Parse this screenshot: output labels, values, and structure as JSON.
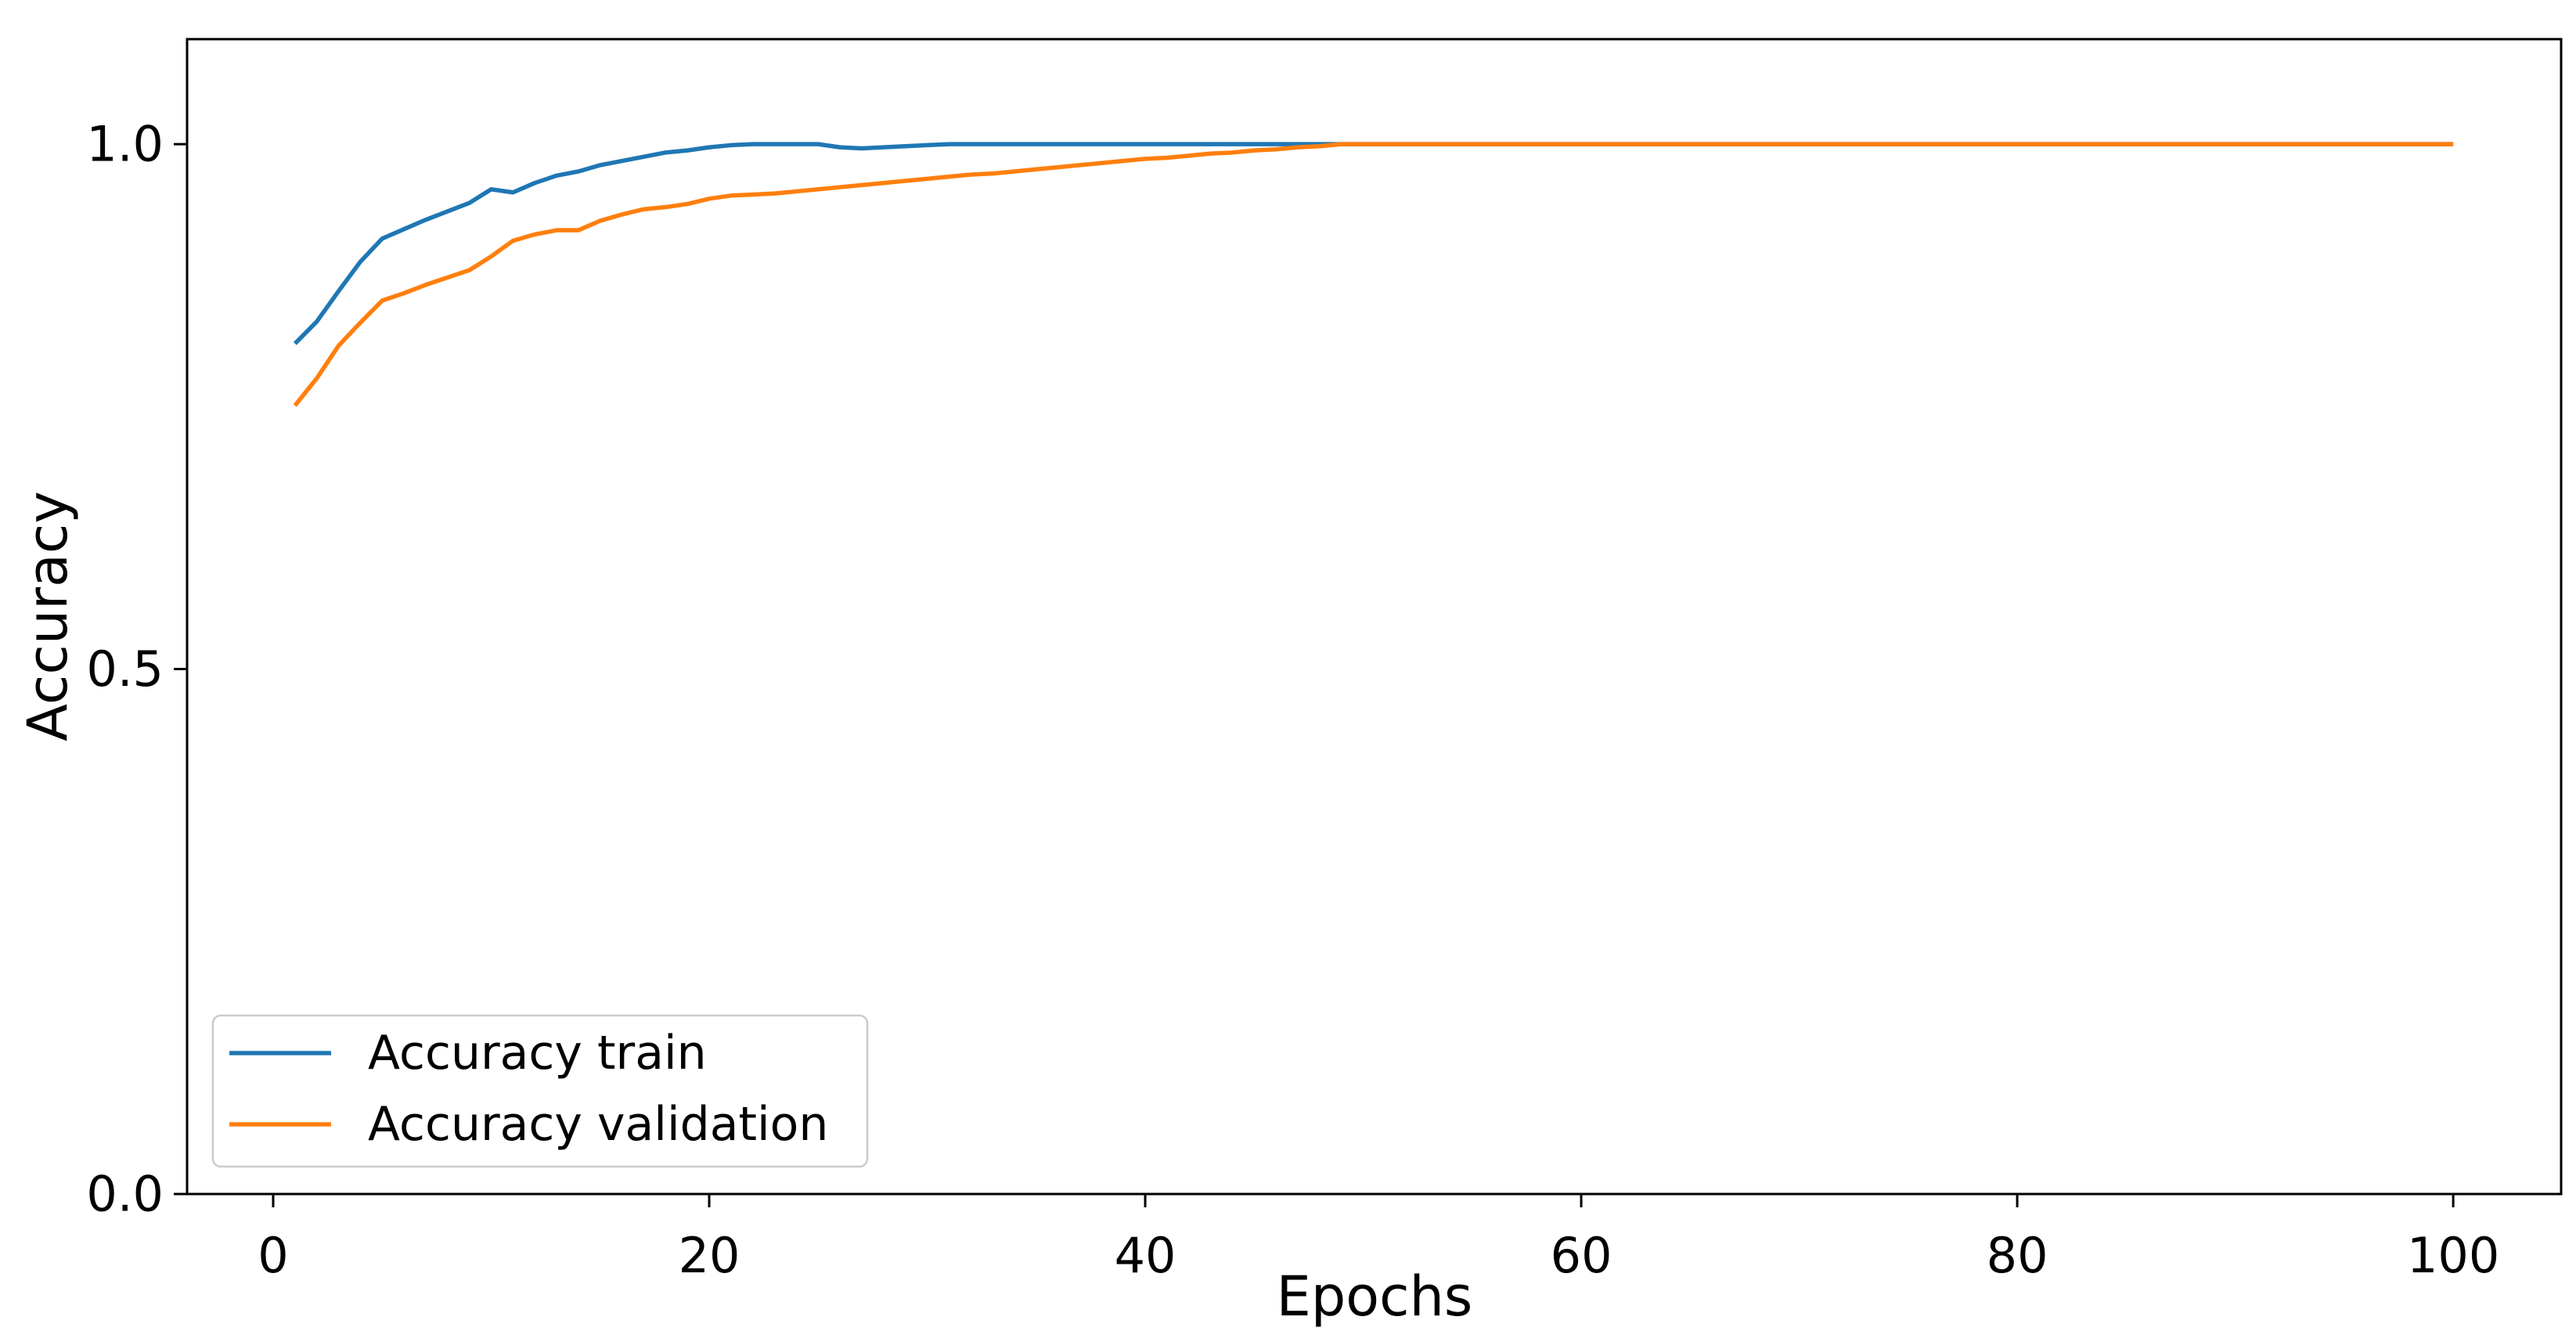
{
  "chart_data": {
    "type": "line",
    "title": "",
    "xlabel": "Epochs",
    "ylabel": "Accuracy",
    "xlim": [
      -3.95,
      104.95
    ],
    "ylim": [
      0,
      1.1
    ],
    "grid": false,
    "legend_position": "lower left",
    "background_color": "#ffffff",
    "axis_color": "#000000",
    "legend_border_color": "#cccccc",
    "xticks": [
      {
        "value": 0,
        "label": "0"
      },
      {
        "value": 20,
        "label": "20"
      },
      {
        "value": 40,
        "label": "40"
      },
      {
        "value": 60,
        "label": "60"
      },
      {
        "value": 80,
        "label": "80"
      },
      {
        "value": 100,
        "label": "100"
      }
    ],
    "yticks": [
      {
        "value": 0.0,
        "label": "0.0"
      },
      {
        "value": 0.5,
        "label": "0.5"
      },
      {
        "value": 1.0,
        "label": "1.0"
      }
    ],
    "epochs": [
      1,
      2,
      3,
      4,
      5,
      6,
      7,
      8,
      9,
      10,
      11,
      12,
      13,
      14,
      15,
      16,
      17,
      18,
      19,
      20,
      21,
      22,
      23,
      24,
      25,
      26,
      27,
      28,
      29,
      30,
      31,
      32,
      33,
      34,
      35,
      36,
      37,
      38,
      39,
      40,
      41,
      42,
      43,
      44,
      45,
      46,
      47,
      48,
      49,
      50,
      51,
      52,
      53,
      54,
      55,
      56,
      57,
      58,
      59,
      60,
      61,
      62,
      63,
      64,
      65,
      66,
      67,
      68,
      69,
      70,
      71,
      72,
      73,
      74,
      75,
      76,
      77,
      78,
      79,
      80,
      81,
      82,
      83,
      84,
      85,
      86,
      87,
      88,
      89,
      90,
      91,
      92,
      93,
      94,
      95,
      96,
      97,
      98,
      99,
      100
    ],
    "series": [
      {
        "name": "train",
        "label": "Accuracy train",
        "color": "#1f77b4",
        "values": [
          0.81,
          0.831,
          0.86,
          0.888,
          0.91,
          0.919,
          0.928,
          0.936,
          0.944,
          0.957,
          0.954,
          0.963,
          0.97,
          0.974,
          0.98,
          0.984,
          0.988,
          0.992,
          0.994,
          0.997,
          0.999,
          1.0,
          1.0,
          1.0,
          1.0,
          0.997,
          0.996,
          0.997,
          0.998,
          0.999,
          1.0,
          1.0,
          1.0,
          1.0,
          1.0,
          1.0,
          1.0,
          1.0,
          1.0,
          1.0,
          1.0,
          1.0,
          1.0,
          1.0,
          1.0,
          1.0,
          1.0,
          1.0,
          1.0,
          1.0,
          1.0,
          1.0,
          1.0,
          1.0,
          1.0,
          1.0,
          1.0,
          1.0,
          1.0,
          1.0,
          1.0,
          1.0,
          1.0,
          1.0,
          1.0,
          1.0,
          1.0,
          1.0,
          1.0,
          1.0,
          1.0,
          1.0,
          1.0,
          1.0,
          1.0,
          1.0,
          1.0,
          1.0,
          1.0,
          1.0,
          1.0,
          1.0,
          1.0,
          1.0,
          1.0,
          1.0,
          1.0,
          1.0,
          1.0,
          1.0,
          1.0,
          1.0,
          1.0,
          1.0,
          1.0,
          1.0,
          1.0,
          1.0,
          1.0,
          1.0
        ]
      },
      {
        "name": "validation",
        "label": "Accuracy validation",
        "color": "#ff7f0e",
        "values": [
          0.751,
          0.777,
          0.808,
          0.83,
          0.851,
          0.858,
          0.866,
          0.873,
          0.88,
          0.893,
          0.908,
          0.914,
          0.918,
          0.918,
          0.927,
          0.933,
          0.938,
          0.94,
          0.943,
          0.948,
          0.951,
          0.952,
          0.953,
          0.955,
          0.957,
          0.959,
          0.961,
          0.963,
          0.965,
          0.967,
          0.969,
          0.971,
          0.972,
          0.974,
          0.976,
          0.978,
          0.98,
          0.982,
          0.984,
          0.986,
          0.987,
          0.989,
          0.991,
          0.992,
          0.994,
          0.995,
          0.997,
          0.998,
          1.0,
          1.0,
          1.0,
          1.0,
          1.0,
          1.0,
          1.0,
          1.0,
          1.0,
          1.0,
          1.0,
          1.0,
          1.0,
          1.0,
          1.0,
          1.0,
          1.0,
          1.0,
          1.0,
          1.0,
          1.0,
          1.0,
          1.0,
          1.0,
          1.0,
          1.0,
          1.0,
          1.0,
          1.0,
          1.0,
          1.0,
          1.0,
          1.0,
          1.0,
          1.0,
          1.0,
          1.0,
          1.0,
          1.0,
          1.0,
          1.0,
          1.0,
          1.0,
          1.0,
          1.0,
          1.0,
          1.0,
          1.0,
          1.0,
          1.0,
          1.0,
          1.0
        ]
      }
    ]
  }
}
